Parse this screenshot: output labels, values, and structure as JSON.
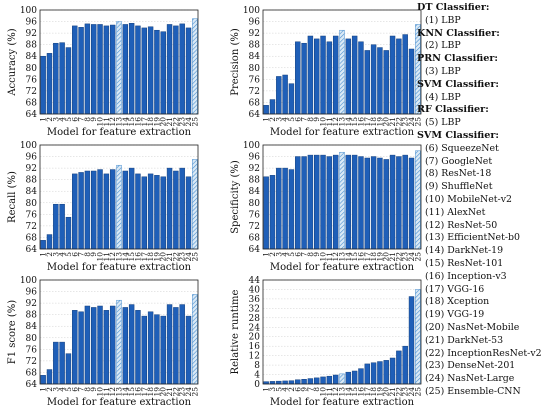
{
  "legend": {
    "groups": [
      {
        "title": "DT Classifier:",
        "items": [
          "(1) LBP"
        ]
      },
      {
        "title": "KNN Classifier:",
        "items": [
          "(2) LBP"
        ]
      },
      {
        "title": "PRN Classifier:",
        "items": [
          "(3) LBP"
        ]
      },
      {
        "title": "SVM Classifier:",
        "items": [
          "(4) LBP"
        ]
      },
      {
        "title": "RF Classifier:",
        "items": [
          "(5) LBP"
        ]
      },
      {
        "title": "SVM Classifier:",
        "items": [
          "(6) SqueezeNet",
          "(7) GoogleNet",
          "(8) ResNet-18",
          "(9) ShuffleNet",
          "(10) MobileNet-v2",
          "(11) AlexNet",
          "(12) ResNet-50",
          "(13) EfficientNet-b0",
          "(14) DarkNet-19",
          "(15) ResNet-101",
          "(16) Inception-v3",
          "(17) VGG-16",
          "(18) Xception",
          "(19) VGG-19",
          "(20) NasNet-Mobile",
          "(21) DarkNet-53",
          "(22) InceptionResNet-v2",
          "(23) DenseNet-201",
          "(24) NasNet-Large",
          "(25) Ensemble-CNN"
        ]
      }
    ]
  },
  "colors": {
    "bar": "#1f5fb8",
    "highlight_fill": "#dbeaf6",
    "highlight_hatch": "#4a8fd0",
    "axis": "#222222"
  },
  "chart_data": [
    {
      "type": "bar",
      "xlabel": "Model for feature extraction",
      "ylabel": "Accuracy (%)",
      "ylim": [
        64,
        100
      ],
      "yticks": [
        64,
        68,
        72,
        76,
        80,
        84,
        88,
        92,
        96,
        100
      ],
      "grid": true,
      "categories": [
        "1",
        "2",
        "3",
        "4",
        "5",
        "6",
        "7",
        "8",
        "9",
        "10",
        "11",
        "12",
        "13",
        "14",
        "15",
        "16",
        "17",
        "18",
        "19",
        "20",
        "21",
        "22",
        "23",
        "24",
        "25"
      ],
      "highlight": [
        "13",
        "25"
      ],
      "values": [
        84,
        85,
        88.5,
        88.7,
        87,
        94.5,
        94,
        95.2,
        95,
        95,
        94.5,
        94.8,
        96,
        95,
        95.4,
        94.5,
        93.8,
        94.2,
        93,
        92.5,
        95,
        94.5,
        95.2,
        93.8,
        97
      ]
    },
    {
      "type": "bar",
      "xlabel": "Model for feature extraction",
      "ylabel": "Precision (%)",
      "ylim": [
        64,
        100
      ],
      "yticks": [
        64,
        68,
        72,
        76,
        80,
        84,
        88,
        92,
        96,
        100
      ],
      "grid": true,
      "categories": [
        "1",
        "2",
        "3",
        "4",
        "5",
        "6",
        "7",
        "8",
        "9",
        "10",
        "11",
        "12",
        "13",
        "14",
        "15",
        "16",
        "17",
        "18",
        "19",
        "20",
        "21",
        "22",
        "23",
        "24",
        "25"
      ],
      "highlight": [
        "13",
        "25"
      ],
      "values": [
        67,
        69,
        77,
        77.5,
        74.5,
        89,
        88.5,
        91,
        90,
        91,
        89,
        91,
        93,
        90,
        91,
        89,
        86,
        88,
        87,
        86,
        91,
        90,
        91.5,
        86.5,
        95
      ]
    },
    {
      "type": "bar",
      "xlabel": "Model for feature extraction",
      "ylabel": "Recall (%)",
      "ylim": [
        64,
        100
      ],
      "yticks": [
        64,
        68,
        72,
        76,
        80,
        84,
        88,
        92,
        96,
        100
      ],
      "grid": true,
      "categories": [
        "1",
        "2",
        "3",
        "4",
        "5",
        "6",
        "7",
        "8",
        "9",
        "10",
        "11",
        "12",
        "13",
        "14",
        "15",
        "16",
        "17",
        "18",
        "19",
        "20",
        "21",
        "22",
        "23",
        "24",
        "25"
      ],
      "highlight": [
        "13",
        "25"
      ],
      "values": [
        67,
        69,
        79.5,
        79.5,
        75,
        90,
        90.5,
        91,
        91,
        91.5,
        90,
        91.5,
        93,
        91,
        92,
        90,
        89,
        90,
        89.5,
        89,
        92,
        91,
        92,
        89,
        95
      ]
    },
    {
      "type": "bar",
      "xlabel": "Model for feature extraction",
      "ylabel": "Specificity (%)",
      "ylim": [
        64,
        100
      ],
      "yticks": [
        64,
        68,
        72,
        76,
        80,
        84,
        88,
        92,
        96,
        100
      ],
      "grid": true,
      "categories": [
        "1",
        "2",
        "3",
        "4",
        "5",
        "6",
        "7",
        "8",
        "9",
        "10",
        "11",
        "12",
        "13",
        "14",
        "15",
        "16",
        "17",
        "18",
        "19",
        "20",
        "21",
        "22",
        "23",
        "24",
        "25"
      ],
      "highlight": [
        "13",
        "25"
      ],
      "values": [
        89,
        89.5,
        92,
        92,
        91.5,
        96,
        96,
        96.5,
        96.5,
        96.5,
        96,
        96.5,
        97.5,
        96.5,
        96.5,
        96,
        95.5,
        96,
        95.5,
        95,
        96.5,
        96,
        96.5,
        95.5,
        98
      ]
    },
    {
      "type": "bar",
      "xlabel": "Model for feature extraction",
      "ylabel": "F1 score (%)",
      "ylim": [
        64,
        100
      ],
      "yticks": [
        64,
        68,
        72,
        76,
        80,
        84,
        88,
        92,
        96,
        100
      ],
      "grid": true,
      "categories": [
        "1",
        "2",
        "3",
        "4",
        "5",
        "6",
        "7",
        "8",
        "9",
        "10",
        "11",
        "12",
        "13",
        "14",
        "15",
        "16",
        "17",
        "18",
        "19",
        "20",
        "21",
        "22",
        "23",
        "24",
        "25"
      ],
      "highlight": [
        "13",
        "25"
      ],
      "values": [
        67,
        69,
        78.5,
        78.5,
        74.5,
        89.5,
        89,
        91,
        90.5,
        91,
        89.5,
        91,
        93,
        90.5,
        91.5,
        89.5,
        87.5,
        89,
        88,
        87.5,
        91.5,
        90.5,
        91.5,
        87.5,
        95
      ]
    },
    {
      "type": "bar",
      "xlabel": "Model for feature extraction",
      "ylabel": "Relative runtime",
      "ylim": [
        0,
        44
      ],
      "yticks": [
        0,
        4,
        8,
        12,
        16,
        20,
        24,
        28,
        32,
        36,
        40,
        44
      ],
      "grid": true,
      "categories": [
        "1",
        "3",
        "5",
        "4",
        "2",
        "6",
        "9",
        "7",
        "8",
        "10",
        "11",
        "12",
        "13",
        "14",
        "15",
        "16",
        "17",
        "18",
        "19",
        "20",
        "21",
        "22",
        "23",
        "24",
        "25"
      ],
      "highlight": [
        "13",
        "25"
      ],
      "values": [
        1,
        1.1,
        1.2,
        1.3,
        1.4,
        1.8,
        2,
        2.3,
        2.6,
        3,
        3.3,
        3.8,
        4.3,
        5,
        5.5,
        6.5,
        8.5,
        9,
        9.5,
        10,
        11,
        14,
        16,
        37,
        40
      ]
    }
  ]
}
